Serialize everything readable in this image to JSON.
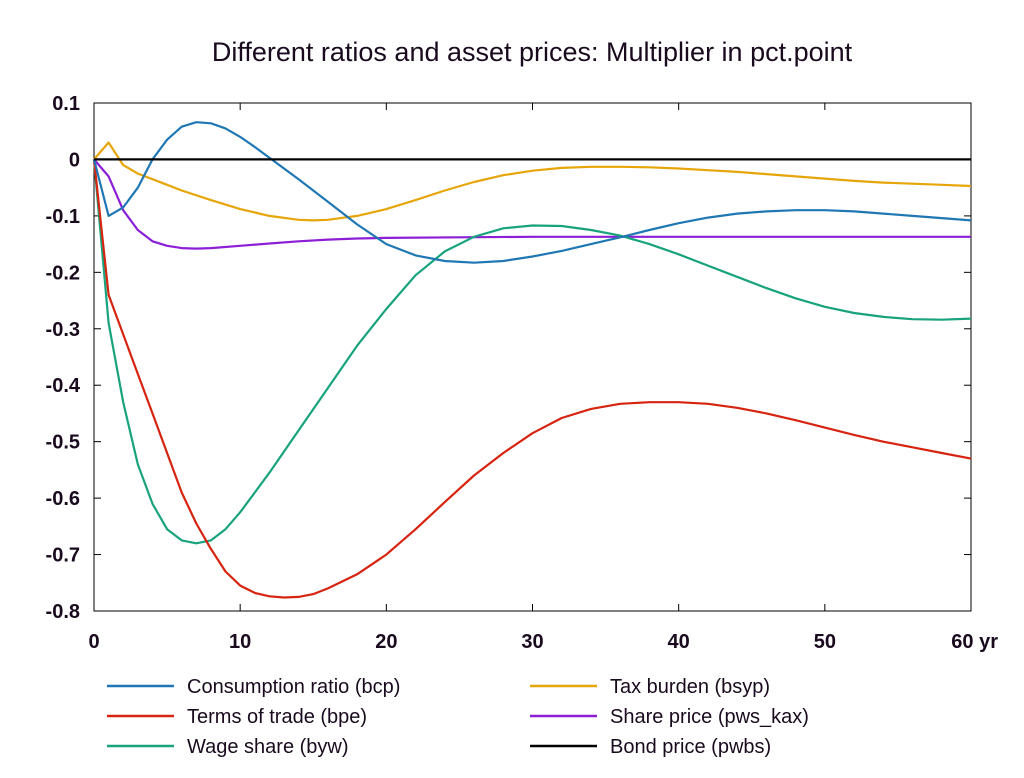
{
  "chart_data": {
    "type": "line",
    "title": "Different ratios and asset prices: Multiplier in pct.point",
    "x_unit_label": "yr",
    "xlim": [
      0,
      60
    ],
    "ylim": [
      -0.8,
      0.1
    ],
    "x_ticks": [
      0,
      10,
      20,
      30,
      40,
      50,
      60
    ],
    "x_tick_labels": [
      "0",
      "10",
      "20",
      "30",
      "40",
      "50",
      "60 yr"
    ],
    "y_ticks": [
      0.1,
      0,
      -0.1,
      -0.2,
      -0.3,
      -0.4,
      -0.5,
      -0.6,
      -0.7,
      -0.8
    ],
    "y_tick_labels": [
      "0.1",
      "0",
      "-0.1",
      "-0.2",
      "-0.3",
      "-0.4",
      "-0.5",
      "-0.6",
      "-0.7",
      "-0.8"
    ],
    "grid": false,
    "legend_position": "bottom",
    "series": [
      {
        "name": "Consumption ratio (bcp)",
        "color": "#1f77b4",
        "x": [
          0,
          1,
          2,
          3,
          4,
          5,
          6,
          7,
          8,
          9,
          10,
          11,
          12,
          14,
          16,
          18,
          20,
          22,
          24,
          26,
          28,
          30,
          32,
          34,
          36,
          38,
          40,
          42,
          44,
          46,
          48,
          50,
          52,
          54,
          56,
          58,
          60
        ],
        "y": [
          0,
          -0.1,
          -0.085,
          -0.05,
          0.0,
          0.035,
          0.058,
          0.066,
          0.064,
          0.055,
          0.04,
          0.022,
          0.003,
          -0.035,
          -0.075,
          -0.115,
          -0.15,
          -0.17,
          -0.18,
          -0.183,
          -0.18,
          -0.172,
          -0.162,
          -0.15,
          -0.138,
          -0.125,
          -0.113,
          -0.103,
          -0.096,
          -0.092,
          -0.09,
          -0.09,
          -0.092,
          -0.096,
          -0.1,
          -0.104,
          -0.108
        ]
      },
      {
        "name": "Terms of trade (bpe)",
        "color": "#d62410",
        "x": [
          0,
          1,
          2,
          3,
          4,
          5,
          6,
          7,
          8,
          9,
          10,
          11,
          12,
          13,
          14,
          15,
          16,
          18,
          20,
          22,
          24,
          26,
          28,
          30,
          32,
          34,
          36,
          38,
          40,
          42,
          44,
          46,
          48,
          50,
          52,
          54,
          56,
          58,
          60
        ],
        "y": [
          0,
          -0.24,
          -0.31,
          -0.38,
          -0.45,
          -0.52,
          -0.59,
          -0.645,
          -0.69,
          -0.73,
          -0.755,
          -0.768,
          -0.774,
          -0.776,
          -0.775,
          -0.77,
          -0.76,
          -0.735,
          -0.7,
          -0.655,
          -0.607,
          -0.56,
          -0.52,
          -0.485,
          -0.458,
          -0.442,
          -0.433,
          -0.43,
          -0.43,
          -0.433,
          -0.44,
          -0.45,
          -0.462,
          -0.475,
          -0.488,
          -0.5,
          -0.51,
          -0.52,
          -0.53
        ]
      },
      {
        "name": "Wage share (byw)",
        "color": "#18a37d",
        "x": [
          0,
          1,
          2,
          3,
          4,
          5,
          6,
          7,
          8,
          9,
          10,
          11,
          12,
          14,
          16,
          18,
          20,
          22,
          24,
          26,
          28,
          30,
          32,
          34,
          36,
          38,
          40,
          42,
          44,
          46,
          48,
          50,
          52,
          54,
          56,
          58,
          60
        ],
        "y": [
          0,
          -0.29,
          -0.43,
          -0.54,
          -0.61,
          -0.655,
          -0.675,
          -0.68,
          -0.675,
          -0.655,
          -0.625,
          -0.59,
          -0.555,
          -0.48,
          -0.405,
          -0.33,
          -0.265,
          -0.205,
          -0.163,
          -0.137,
          -0.122,
          -0.117,
          -0.118,
          -0.125,
          -0.135,
          -0.15,
          -0.168,
          -0.188,
          -0.208,
          -0.228,
          -0.246,
          -0.261,
          -0.272,
          -0.279,
          -0.283,
          -0.284,
          -0.282
        ]
      },
      {
        "name": "Tax burden (bsyp)",
        "color": "#e6a60a",
        "x": [
          0,
          1,
          2,
          3,
          4,
          5,
          6,
          8,
          10,
          12,
          14,
          15,
          16,
          18,
          20,
          22,
          24,
          26,
          28,
          30,
          32,
          34,
          36,
          38,
          40,
          42,
          44,
          46,
          48,
          50,
          52,
          54,
          56,
          58,
          60
        ],
        "y": [
          0,
          0.03,
          -0.01,
          -0.025,
          -0.035,
          -0.045,
          -0.055,
          -0.072,
          -0.088,
          -0.1,
          -0.107,
          -0.108,
          -0.107,
          -0.1,
          -0.088,
          -0.072,
          -0.055,
          -0.04,
          -0.028,
          -0.02,
          -0.015,
          -0.013,
          -0.013,
          -0.014,
          -0.016,
          -0.019,
          -0.022,
          -0.026,
          -0.03,
          -0.034,
          -0.038,
          -0.041,
          -0.043,
          -0.045,
          -0.047
        ]
      },
      {
        "name": "Share price (pws_kax)",
        "color": "#8c1fd6",
        "x": [
          0,
          1,
          2,
          3,
          4,
          5,
          6,
          7,
          8,
          10,
          12,
          14,
          16,
          18,
          20,
          25,
          30,
          35,
          40,
          45,
          50,
          55,
          60
        ],
        "y": [
          0,
          -0.03,
          -0.09,
          -0.125,
          -0.145,
          -0.153,
          -0.157,
          -0.158,
          -0.157,
          -0.153,
          -0.149,
          -0.145,
          -0.142,
          -0.14,
          -0.139,
          -0.138,
          -0.137,
          -0.137,
          -0.137,
          -0.137,
          -0.137,
          -0.137,
          -0.137
        ]
      },
      {
        "name": "Bond price (pwbs)",
        "color": "#000000",
        "x": [
          0,
          60
        ],
        "y": [
          0,
          0
        ]
      }
    ]
  }
}
